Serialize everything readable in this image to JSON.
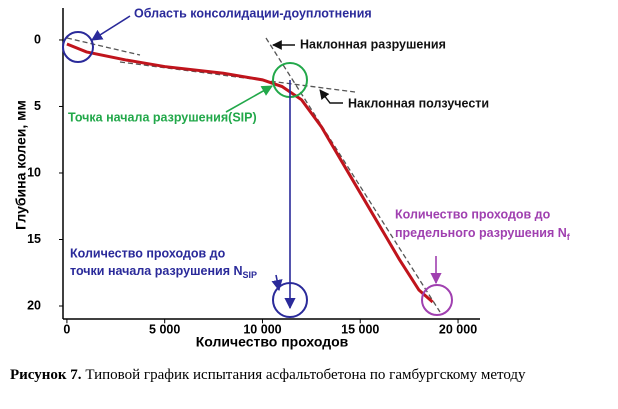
{
  "chart_data": {
    "type": "line",
    "x_label": "Количество проходов",
    "y_label": "Глубина колеи, мм",
    "x": [
      0,
      1000,
      3000,
      5000,
      8000,
      10000,
      11000,
      12000,
      13000,
      14000,
      15000,
      16000,
      17000,
      18000,
      18700
    ],
    "series": [
      {
        "color": "#c0141c",
        "values": [
          0.3,
          0.9,
          1.5,
          2.0,
          2.5,
          3.0,
          3.5,
          4.5,
          6.5,
          9.0,
          11.5,
          14.0,
          16.5,
          18.8,
          19.7
        ]
      }
    ],
    "xlim": [
      -200,
      21000
    ],
    "ylim": [
      -2.2,
      21
    ],
    "y_inverted": true,
    "xticks": [
      0,
      {
        "value": 5000,
        "label": "5 000"
      },
      {
        "value": 10000,
        "label": "10 000"
      },
      {
        "value": 15000,
        "label": "15 000"
      },
      {
        "value": 20000,
        "label": "20 000"
      }
    ],
    "yticks": [
      0,
      5,
      10,
      15,
      20
    ],
    "annotations": {
      "consolidation": "Область консолидации-доуплотнения",
      "stripping_slope": "Наклонная разрушения",
      "creep_slope": "Наклонная ползучести",
      "sip_point": "Точка начала разрушения(SIP)",
      "n_sip": [
        "Количество проходов до",
        "точки начала разрушения N",
        "SIP"
      ],
      "n_f": [
        "Количество проходов до",
        "предельного разрушения N",
        "f"
      ]
    }
  },
  "caption": {
    "label": "Рисунок 7.",
    "text": "Типовой график испытания асфальтобетона по гамбургскому методу"
  }
}
